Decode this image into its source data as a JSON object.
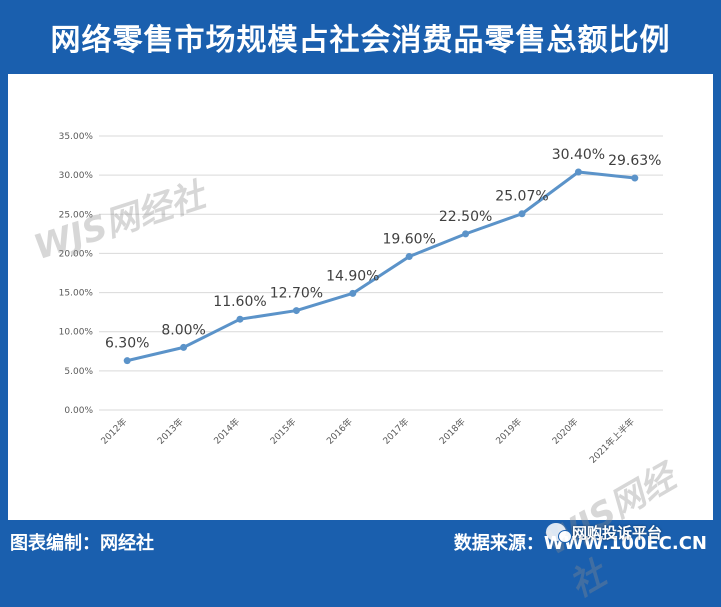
{
  "header": {
    "title": "网络零售市场规模占社会消费品零售总额比例"
  },
  "footer": {
    "left_label": "图表编制：网经社",
    "right_label": "数据来源：WWW.100EC.CN"
  },
  "wechat": {
    "label": "网购投诉平台"
  },
  "watermark": {
    "text": "WJS网经社"
  },
  "colors": {
    "brand_blue": "#1a5fae",
    "line": "#5b93c9",
    "grid": "#d9d9d9"
  },
  "chart_data": {
    "type": "line",
    "title": "",
    "xlabel": "",
    "ylabel": "",
    "categories": [
      "2012年",
      "2013年",
      "2014年",
      "2015年",
      "2016年",
      "2017年",
      "2018年",
      "2019年",
      "2020年",
      "2021年上半年"
    ],
    "series": [
      {
        "values": [
          6.3,
          8.0,
          11.6,
          12.7,
          14.9,
          19.6,
          22.5,
          25.07,
          30.4,
          29.63
        ]
      }
    ],
    "data_labels": [
      "6.30%",
      "8.00%",
      "11.60%",
      "12.70%",
      "14.90%",
      "19.60%",
      "22.50%",
      "25.07%",
      "30.40%",
      "29.63%"
    ],
    "ylim": [
      0,
      35
    ],
    "yticks": [
      0,
      5,
      10,
      15,
      20,
      25,
      30,
      35
    ],
    "ytick_labels": [
      "0.00%",
      "5.00%",
      "10.00%",
      "15.00%",
      "20.00%",
      "25.00%",
      "30.00%",
      "35.00%"
    ],
    "grid": true,
    "legend": "none"
  }
}
